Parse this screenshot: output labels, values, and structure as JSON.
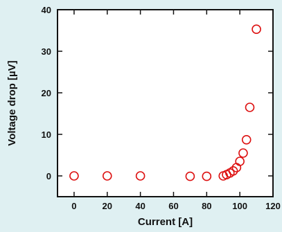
{
  "chart_data": {
    "type": "scatter",
    "xlabel": "Current [A]",
    "ylabel": "Voltage drop [µV]",
    "xlim": [
      -10,
      120
    ],
    "ylim": [
      -5,
      40
    ],
    "xticks": [
      0,
      20,
      40,
      60,
      80,
      100,
      120
    ],
    "yticks": [
      0,
      10,
      20,
      30,
      40
    ],
    "grid": false,
    "colors": {
      "marker": "#dd1111",
      "axis": "#111111",
      "plot_background": "#ffffff",
      "page_background": "#dff0f2"
    },
    "series": [
      {
        "marker": "open-circle",
        "x": [
          0,
          20,
          40,
          70,
          80,
          90,
          92,
          94,
          96,
          98,
          100,
          102,
          104,
          106,
          110
        ],
        "y": [
          0,
          0,
          0,
          -0.1,
          -0.1,
          0,
          0.3,
          0.7,
          1.2,
          2.0,
          3.5,
          5.5,
          8.7,
          16.5,
          35.3
        ]
      }
    ]
  }
}
